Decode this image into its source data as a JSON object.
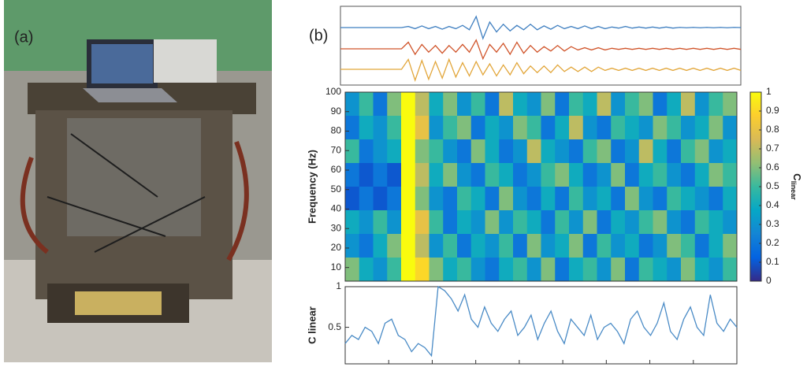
{
  "figure": {
    "panel_a_label": "(a)",
    "panel_b_label": "(b)"
  },
  "chart_data": [
    {
      "type": "waveforms",
      "ylim": [
        -1,
        1
      ],
      "series": [
        {
          "color": "#3f7fc0",
          "values": [
            0,
            0,
            0,
            0,
            0,
            0,
            0,
            0,
            0,
            0,
            0.1,
            -0.1,
            0.15,
            -0.1,
            0.1,
            -0.15,
            0.1,
            -0.1,
            0.2,
            -0.2,
            1,
            -1,
            0.5,
            -0.4,
            0.3,
            -0.3,
            0.2,
            -0.2,
            0.3,
            -0.2,
            0.15,
            -0.15,
            0.2,
            -0.1,
            0.1,
            -0.1,
            0.15,
            -0.1,
            0.1,
            -0.1,
            0.05,
            -0.05,
            0.1,
            -0.05,
            0.05,
            -0.05,
            0.05,
            -0.05,
            0.05,
            -0.05,
            0.02,
            -0.02,
            0.02,
            -0.02,
            0.02,
            -0.02,
            0.02,
            -0.02,
            0.02,
            0
          ]
        },
        {
          "color": "#d0542a",
          "values": [
            0,
            0,
            0,
            0,
            0,
            0,
            0,
            0,
            0,
            0,
            0.6,
            -0.5,
            0.4,
            -0.3,
            0.3,
            -0.4,
            0.3,
            -0.3,
            0.4,
            -0.3,
            0.8,
            -0.9,
            0.4,
            -0.3,
            0.5,
            -0.5,
            0.6,
            -0.4,
            0.3,
            -0.3,
            0.2,
            -0.2,
            0.3,
            -0.2,
            0.2,
            -0.1,
            0.1,
            -0.1,
            0.1,
            -0.1,
            0.05,
            -0.05,
            0.05,
            -0.05,
            0.05,
            -0.05,
            0.05,
            -0.05,
            0.05,
            -0.05,
            0.05,
            -0.05,
            0.05,
            -0.05,
            0.05,
            -0.05,
            0.05,
            -0.05,
            0.05,
            -0.05
          ]
        },
        {
          "color": "#e2a63a",
          "values": [
            0,
            0,
            0,
            0,
            0,
            0,
            0,
            0,
            0,
            0,
            0.9,
            -1,
            0.8,
            -0.9,
            0.7,
            -0.8,
            0.9,
            -0.7,
            0.6,
            -0.6,
            0.7,
            -0.5,
            0.5,
            -0.6,
            0.4,
            -0.5,
            0.6,
            -0.4,
            0.3,
            -0.3,
            0.3,
            -0.3,
            0.4,
            -0.2,
            0.2,
            -0.2,
            0.2,
            -0.2,
            0.2,
            -0.1,
            0.1,
            -0.1,
            0.1,
            -0.1,
            0.1,
            -0.1,
            0.1,
            -0.1,
            0.1,
            -0.1,
            0.1,
            -0.1,
            0.1,
            -0.1,
            0.1,
            -0.1,
            0.1,
            -0.1,
            0.1,
            -0.1
          ]
        }
      ]
    },
    {
      "type": "heatmap",
      "y_label": "Frequency (Hz)",
      "ylim": [
        3,
        100
      ],
      "yticks": [
        10,
        20,
        30,
        40,
        50,
        60,
        70,
        80,
        90,
        100
      ],
      "colormap": "parula",
      "zlim": [
        0,
        1
      ],
      "colorbar_ticks": [
        0,
        0.1,
        0.2,
        0.3,
        0.4,
        0.5,
        0.6,
        0.7,
        0.8,
        0.9,
        1
      ],
      "colorbar_label": "C",
      "colorbar_label_sub": "linear",
      "z": [
        [
          0.3,
          0.5,
          0.2,
          0.6,
          1,
          0.7,
          0.4,
          0.6,
          0.3,
          0.5,
          0.2,
          0.7,
          0.4,
          0.3,
          0.6,
          0.2,
          0.5,
          0.4,
          0.7,
          0.3,
          0.5,
          0.6,
          0.2,
          0.4,
          0.7,
          0.3,
          0.5,
          0.6
        ],
        [
          0.2,
          0.4,
          0.3,
          0.5,
          1,
          0.8,
          0.3,
          0.5,
          0.6,
          0.2,
          0.4,
          0.3,
          0.6,
          0.5,
          0.2,
          0.4,
          0.7,
          0.3,
          0.2,
          0.5,
          0.4,
          0.3,
          0.6,
          0.5,
          0.3,
          0.4,
          0.6,
          0.3
        ],
        [
          0.5,
          0.2,
          0.3,
          0.4,
          1,
          0.6,
          0.5,
          0.3,
          0.2,
          0.6,
          0.4,
          0.2,
          0.3,
          0.7,
          0.4,
          0.3,
          0.2,
          0.5,
          0.6,
          0.2,
          0.3,
          0.7,
          0.4,
          0.2,
          0.5,
          0.6,
          0.3,
          0.4
        ],
        [
          0.2,
          0.1,
          0.2,
          0.1,
          1,
          0.7,
          0.4,
          0.6,
          0.3,
          0.2,
          0.5,
          0.4,
          0.2,
          0.3,
          0.5,
          0.6,
          0.4,
          0.2,
          0.3,
          0.6,
          0.2,
          0.4,
          0.5,
          0.3,
          0.2,
          0.4,
          0.6,
          0.5
        ],
        [
          0.1,
          0.2,
          0.1,
          0.2,
          1,
          0.6,
          0.3,
          0.2,
          0.5,
          0.4,
          0.2,
          0.6,
          0.3,
          0.2,
          0.4,
          0.2,
          0.5,
          0.3,
          0.4,
          0.2,
          0.6,
          0.3,
          0.2,
          0.5,
          0.4,
          0.3,
          0.2,
          0.4
        ],
        [
          0.4,
          0.3,
          0.5,
          0.3,
          1,
          0.8,
          0.5,
          0.2,
          0.4,
          0.3,
          0.6,
          0.3,
          0.5,
          0.4,
          0.2,
          0.5,
          0.3,
          0.6,
          0.2,
          0.4,
          0.3,
          0.5,
          0.6,
          0.3,
          0.2,
          0.5,
          0.4,
          0.3
        ],
        [
          0.3,
          0.2,
          0.4,
          0.6,
          1,
          0.7,
          0.3,
          0.5,
          0.2,
          0.4,
          0.3,
          0.5,
          0.2,
          0.6,
          0.3,
          0.4,
          0.6,
          0.2,
          0.5,
          0.3,
          0.4,
          0.2,
          0.3,
          0.6,
          0.5,
          0.2,
          0.4,
          0.6
        ],
        [
          0.6,
          0.4,
          0.3,
          0.5,
          1,
          0.9,
          0.6,
          0.4,
          0.5,
          0.3,
          0.2,
          0.4,
          0.5,
          0.3,
          0.6,
          0.2,
          0.4,
          0.5,
          0.3,
          0.6,
          0.2,
          0.5,
          0.4,
          0.3,
          0.6,
          0.4,
          0.3,
          0.5
        ]
      ]
    },
    {
      "type": "line",
      "y_label": "C linear",
      "ylim": [
        0.05,
        1
      ],
      "yticks": [
        0.5,
        1
      ],
      "series": [
        {
          "color": "#4a8bc6",
          "values": [
            0.3,
            0.4,
            0.35,
            0.5,
            0.45,
            0.3,
            0.55,
            0.6,
            0.4,
            0.35,
            0.2,
            0.3,
            0.25,
            0.15,
            1,
            0.95,
            0.85,
            0.7,
            0.9,
            0.6,
            0.5,
            0.75,
            0.55,
            0.45,
            0.6,
            0.7,
            0.4,
            0.5,
            0.65,
            0.35,
            0.55,
            0.7,
            0.45,
            0.3,
            0.6,
            0.5,
            0.4,
            0.65,
            0.35,
            0.5,
            0.55,
            0.45,
            0.3,
            0.6,
            0.7,
            0.5,
            0.4,
            0.55,
            0.8,
            0.45,
            0.35,
            0.6,
            0.75,
            0.5,
            0.4,
            0.9,
            0.55,
            0.45,
            0.6,
            0.5
          ]
        }
      ]
    }
  ]
}
